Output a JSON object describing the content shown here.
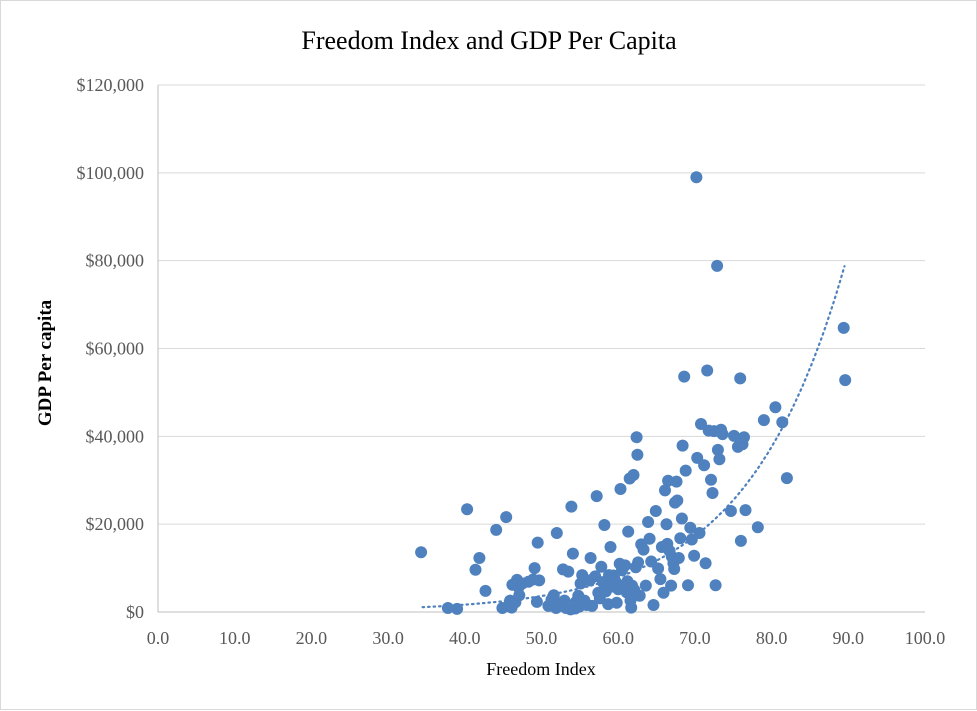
{
  "chart_data": {
    "type": "scatter",
    "title": "Freedom Index and GDP Per Capita",
    "xlabel": "Freedom Index",
    "ylabel": "GDP Per capita",
    "xlim": [
      0,
      100
    ],
    "ylim": [
      0,
      120000
    ],
    "x_ticks": [
      "0.0",
      "10.0",
      "20.0",
      "30.0",
      "40.0",
      "50.0",
      "60.0",
      "70.0",
      "80.0",
      "90.0",
      "100.0"
    ],
    "y_ticks": [
      "$0",
      "$20,000",
      "$40,000",
      "$60,000",
      "$80,000",
      "$100,000",
      "$120,000"
    ],
    "grid": "horizontal",
    "point_color": "#4e81bd",
    "trendline": {
      "type": "exponential",
      "style": "dotted",
      "color": "#4e81bd",
      "x_range": [
        34.5,
        89.5
      ],
      "a": 74.5,
      "b": 0.0778
    },
    "points": [
      [
        34.3,
        13600
      ],
      [
        37.8,
        900
      ],
      [
        39.0,
        700
      ],
      [
        40.3,
        23400
      ],
      [
        41.4,
        9600
      ],
      [
        41.9,
        12300
      ],
      [
        42.7,
        4800
      ],
      [
        44.1,
        18700
      ],
      [
        44.9,
        900
      ],
      [
        45.4,
        21600
      ],
      [
        45.7,
        1300
      ],
      [
        45.9,
        2600
      ],
      [
        46.1,
        1000
      ],
      [
        46.2,
        6200
      ],
      [
        46.6,
        2200
      ],
      [
        46.8,
        7300
      ],
      [
        47.0,
        5600
      ],
      [
        47.1,
        3800
      ],
      [
        47.5,
        6500
      ],
      [
        48.3,
        6900
      ],
      [
        48.9,
        7400
      ],
      [
        49.1,
        10000
      ],
      [
        49.4,
        2300
      ],
      [
        49.5,
        15800
      ],
      [
        49.7,
        7200
      ],
      [
        50.9,
        1400
      ],
      [
        51.3,
        2800
      ],
      [
        51.6,
        3800
      ],
      [
        51.9,
        900
      ],
      [
        52.0,
        18000
      ],
      [
        52.3,
        1800
      ],
      [
        52.8,
        9700
      ],
      [
        53.0,
        2600
      ],
      [
        53.2,
        900
      ],
      [
        53.5,
        9200
      ],
      [
        53.8,
        600
      ],
      [
        53.9,
        24000
      ],
      [
        54.1,
        13300
      ],
      [
        54.4,
        800
      ],
      [
        54.5,
        2300
      ],
      [
        54.8,
        3700
      ],
      [
        54.9,
        1200
      ],
      [
        55.1,
        6500
      ],
      [
        55.3,
        8400
      ],
      [
        55.6,
        2600
      ],
      [
        55.9,
        1600
      ],
      [
        56.3,
        7200
      ],
      [
        56.4,
        12300
      ],
      [
        56.6,
        1400
      ],
      [
        57.0,
        8100
      ],
      [
        57.2,
        26400
      ],
      [
        57.4,
        4400
      ],
      [
        57.6,
        3100
      ],
      [
        57.8,
        10300
      ],
      [
        58.0,
        6800
      ],
      [
        58.2,
        19800
      ],
      [
        58.4,
        4700
      ],
      [
        58.7,
        1800
      ],
      [
        58.8,
        8400
      ],
      [
        59.0,
        14800
      ],
      [
        59.2,
        5800
      ],
      [
        59.4,
        8300
      ],
      [
        59.6,
        7100
      ],
      [
        59.8,
        2100
      ],
      [
        60.0,
        5200
      ],
      [
        60.2,
        11000
      ],
      [
        60.3,
        28000
      ],
      [
        60.5,
        9500
      ],
      [
        60.7,
        6100
      ],
      [
        60.9,
        10600
      ],
      [
        61.1,
        4500
      ],
      [
        61.2,
        7000
      ],
      [
        61.3,
        18300
      ],
      [
        61.5,
        30400
      ],
      [
        61.6,
        2600
      ],
      [
        61.7,
        1000
      ],
      [
        61.8,
        6000
      ],
      [
        62.0,
        31200
      ],
      [
        62.1,
        5000
      ],
      [
        62.3,
        10200
      ],
      [
        62.4,
        39800
      ],
      [
        62.5,
        35800
      ],
      [
        62.6,
        11300
      ],
      [
        62.8,
        3700
      ],
      [
        63.0,
        15400
      ],
      [
        63.3,
        14200
      ],
      [
        63.6,
        6000
      ],
      [
        63.9,
        20500
      ],
      [
        64.1,
        16700
      ],
      [
        64.3,
        11500
      ],
      [
        64.6,
        1600
      ],
      [
        64.9,
        23000
      ],
      [
        65.2,
        9900
      ],
      [
        65.5,
        7500
      ],
      [
        65.7,
        14800
      ],
      [
        65.9,
        4400
      ],
      [
        66.1,
        27700
      ],
      [
        66.3,
        20000
      ],
      [
        66.4,
        15500
      ],
      [
        66.5,
        29900
      ],
      [
        66.7,
        13900
      ],
      [
        66.9,
        6000
      ],
      [
        67.0,
        12600
      ],
      [
        67.2,
        11100
      ],
      [
        67.3,
        9800
      ],
      [
        67.4,
        24900
      ],
      [
        67.6,
        29700
      ],
      [
        67.7,
        25400
      ],
      [
        67.9,
        12300
      ],
      [
        68.1,
        16800
      ],
      [
        68.3,
        21300
      ],
      [
        68.4,
        37900
      ],
      [
        68.6,
        53600
      ],
      [
        68.8,
        32200
      ],
      [
        69.1,
        6100
      ],
      [
        69.4,
        19200
      ],
      [
        69.6,
        16500
      ],
      [
        69.9,
        12800
      ],
      [
        70.2,
        99000
      ],
      [
        70.3,
        35100
      ],
      [
        70.6,
        18000
      ],
      [
        70.8,
        42800
      ],
      [
        71.2,
        33400
      ],
      [
        71.4,
        11100
      ],
      [
        71.6,
        55000
      ],
      [
        71.8,
        41300
      ],
      [
        72.1,
        30100
      ],
      [
        72.3,
        27100
      ],
      [
        72.5,
        41200
      ],
      [
        72.7,
        6100
      ],
      [
        72.9,
        78800
      ],
      [
        73.0,
        36900
      ],
      [
        73.2,
        34800
      ],
      [
        73.4,
        41500
      ],
      [
        73.6,
        40500
      ],
      [
        74.7,
        23000
      ],
      [
        75.1,
        40100
      ],
      [
        75.6,
        37600
      ],
      [
        75.9,
        53200
      ],
      [
        76.0,
        16200
      ],
      [
        76.2,
        38200
      ],
      [
        76.4,
        39800
      ],
      [
        76.6,
        23200
      ],
      [
        78.2,
        19300
      ],
      [
        79.0,
        43700
      ],
      [
        80.5,
        46600
      ],
      [
        81.4,
        43200
      ],
      [
        82.0,
        30500
      ],
      [
        89.4,
        64700
      ],
      [
        89.6,
        52800
      ]
    ]
  }
}
